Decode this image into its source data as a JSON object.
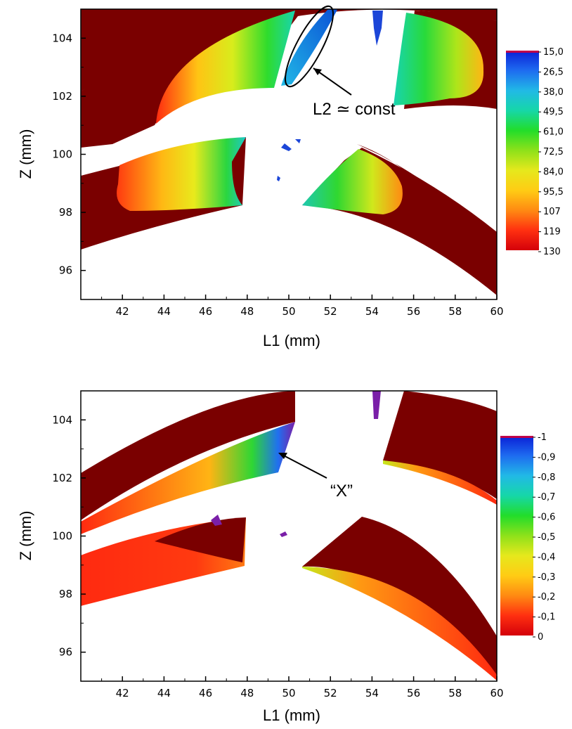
{
  "chart_data": [
    {
      "type": "heatmap",
      "xlabel": "L1 (mm)",
      "ylabel": "Z (mm)",
      "xlim": [
        40,
        60
      ],
      "ylim": [
        95,
        105
      ],
      "x_ticks": [
        "42",
        "44",
        "46",
        "48",
        "50",
        "52",
        "54",
        "56",
        "58",
        "60"
      ],
      "y_ticks": [
        "96",
        "98",
        "100",
        "102",
        "104"
      ],
      "colorbar": {
        "labels": [
          "15,0",
          "26,5",
          "38,0",
          "49,5",
          "61,0",
          "72,5",
          "84,0",
          "95,5",
          "107",
          "119",
          "130"
        ],
        "range": [
          15,
          130
        ],
        "colors": [
          "#0a1fd6",
          "#1e6cf0",
          "#21b9e6",
          "#16d7a8",
          "#22dd2a",
          "#8ee11a",
          "#e6e81c",
          "#ffcc14",
          "#ff8a12",
          "#ff3010",
          "#d4000a"
        ]
      },
      "annotations": [
        {
          "text": "L2 ≃ const",
          "target": [
            51.2,
            103.3
          ]
        }
      ]
    },
    {
      "type": "heatmap",
      "xlabel": "L1 (mm)",
      "ylabel": "Z (mm)",
      "xlim": [
        40,
        60
      ],
      "ylim": [
        95,
        105
      ],
      "x_ticks": [
        "42",
        "44",
        "46",
        "48",
        "50",
        "52",
        "54",
        "56",
        "58",
        "60"
      ],
      "y_ticks": [
        "96",
        "98",
        "100",
        "102",
        "104"
      ],
      "colorbar": {
        "labels": [
          "-1",
          "-0,9",
          "-0,8",
          "-0,7",
          "-0,6",
          "-0,5",
          "-0,4",
          "-0,3",
          "-0,2",
          "-0,1",
          "0"
        ],
        "range": [
          -1,
          0
        ],
        "colors": [
          "#0a1fd6",
          "#1e6cf0",
          "#21b9e6",
          "#16d7a8",
          "#22dd2a",
          "#8ee11a",
          "#e6e81c",
          "#ffcc14",
          "#ff8a12",
          "#ff3010",
          "#d4000a"
        ]
      },
      "annotations": [
        {
          "text": "“X”",
          "target": [
            49.3,
            102.1
          ]
        }
      ]
    }
  ],
  "colors": {
    "band": "#7a0000",
    "axis": "#000000"
  }
}
